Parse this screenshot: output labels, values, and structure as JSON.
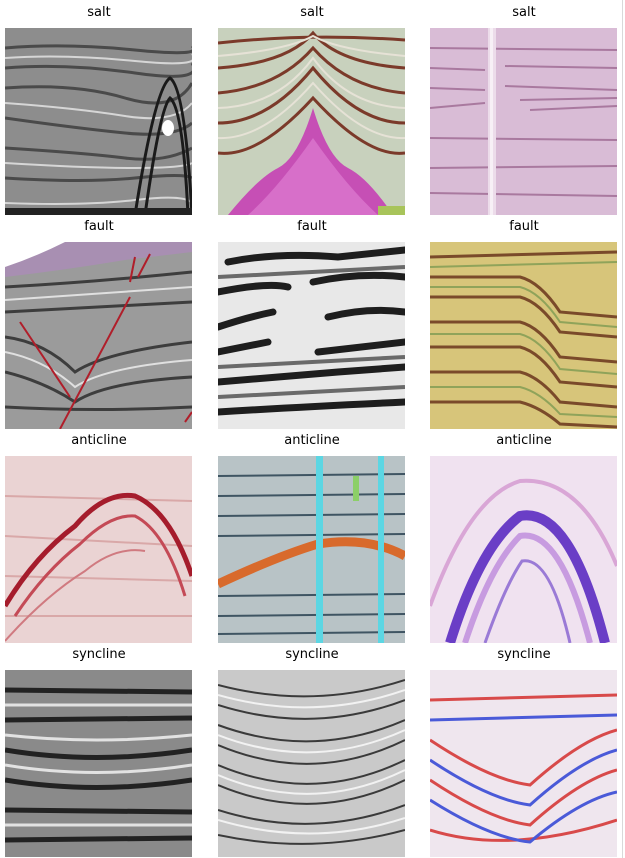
{
  "grid": {
    "rows": [
      {
        "label": "salt",
        "tiles": [
          {
            "palette": "grayscale"
          },
          {
            "palette": "green-red-magenta"
          },
          {
            "palette": "lavender"
          }
        ]
      },
      {
        "label": "fault",
        "tiles": [
          {
            "palette": "gray-purple-red"
          },
          {
            "palette": "grayscale"
          },
          {
            "palette": "yellow-brown"
          }
        ]
      },
      {
        "label": "anticline",
        "tiles": [
          {
            "palette": "white-red"
          },
          {
            "palette": "gray-cyan-orange"
          },
          {
            "palette": "white-purple-blue"
          }
        ]
      },
      {
        "label": "syncline",
        "tiles": [
          {
            "palette": "grayscale"
          },
          {
            "palette": "grayscale"
          },
          {
            "palette": "red-white-blue"
          }
        ]
      }
    ],
    "labels": [
      [
        "salt",
        "salt",
        "salt"
      ],
      [
        "fault",
        "fault",
        "fault"
      ],
      [
        "anticline",
        "anticline",
        "anticline"
      ],
      [
        "syncline",
        "syncline",
        "syncline"
      ]
    ],
    "colors": {
      "background": "#ffffff",
      "text": "#000000"
    }
  }
}
